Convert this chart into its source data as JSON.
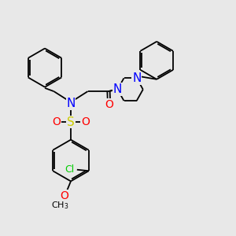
{
  "bg_color": "#e8e8e8",
  "bond_color": "#000000",
  "N_color": "#0000ff",
  "O_color": "#ff0000",
  "S_color": "#cccc00",
  "Cl_color": "#00cc00",
  "figsize": [
    3.0,
    3.0
  ],
  "dpi": 100,
  "lw": 1.3,
  "ring_r": 0.72,
  "xlim": [
    0,
    10
  ],
  "ylim": [
    0,
    10
  ]
}
